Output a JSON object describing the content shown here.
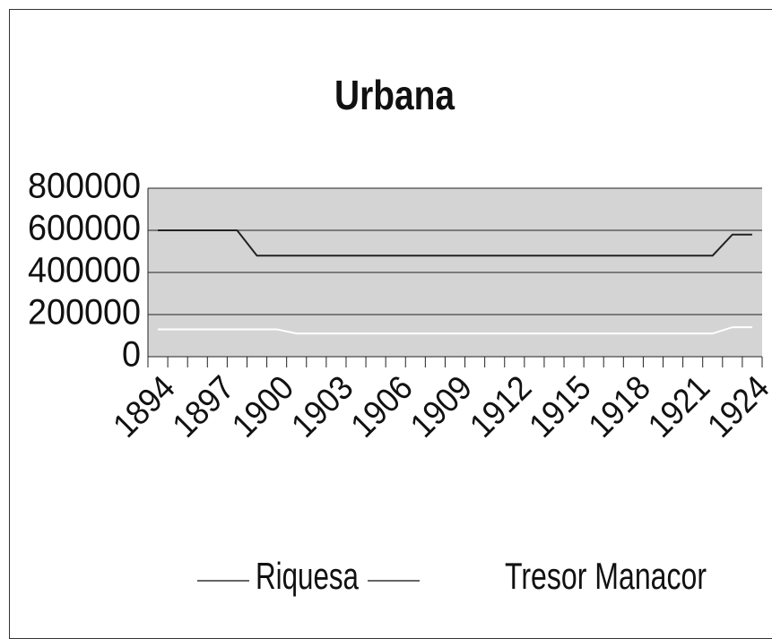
{
  "chart_data": {
    "type": "line",
    "title": "Urbana",
    "categories": [
      "1894",
      null,
      null,
      "1897",
      null,
      null,
      "1900",
      null,
      null,
      "1903",
      null,
      null,
      "1906",
      null,
      null,
      "1909",
      null,
      null,
      "1912",
      null,
      null,
      "1915",
      null,
      null,
      "1918",
      null,
      null,
      "1921",
      null,
      null,
      "1924"
    ],
    "series": [
      {
        "name": "Riquesa",
        "color": "#ffffff",
        "values": [
          130000,
          130000,
          130000,
          130000,
          130000,
          130000,
          130000,
          110000,
          110000,
          110000,
          110000,
          110000,
          110000,
          110000,
          110000,
          110000,
          110000,
          110000,
          110000,
          110000,
          110000,
          110000,
          110000,
          110000,
          110000,
          110000,
          110000,
          110000,
          110000,
          140000,
          140000
        ]
      },
      {
        "name": "Tresor Manacor",
        "color": "#222222",
        "values": [
          600000,
          600000,
          600000,
          600000,
          600000,
          480000,
          480000,
          480000,
          480000,
          480000,
          480000,
          480000,
          480000,
          480000,
          480000,
          480000,
          480000,
          480000,
          480000,
          480000,
          480000,
          480000,
          480000,
          480000,
          480000,
          480000,
          480000,
          480000,
          480000,
          580000,
          580000
        ]
      }
    ],
    "ylim": [
      0,
      800000
    ],
    "yticks": [
      0,
      200000,
      400000,
      600000,
      800000
    ],
    "grid": true
  }
}
